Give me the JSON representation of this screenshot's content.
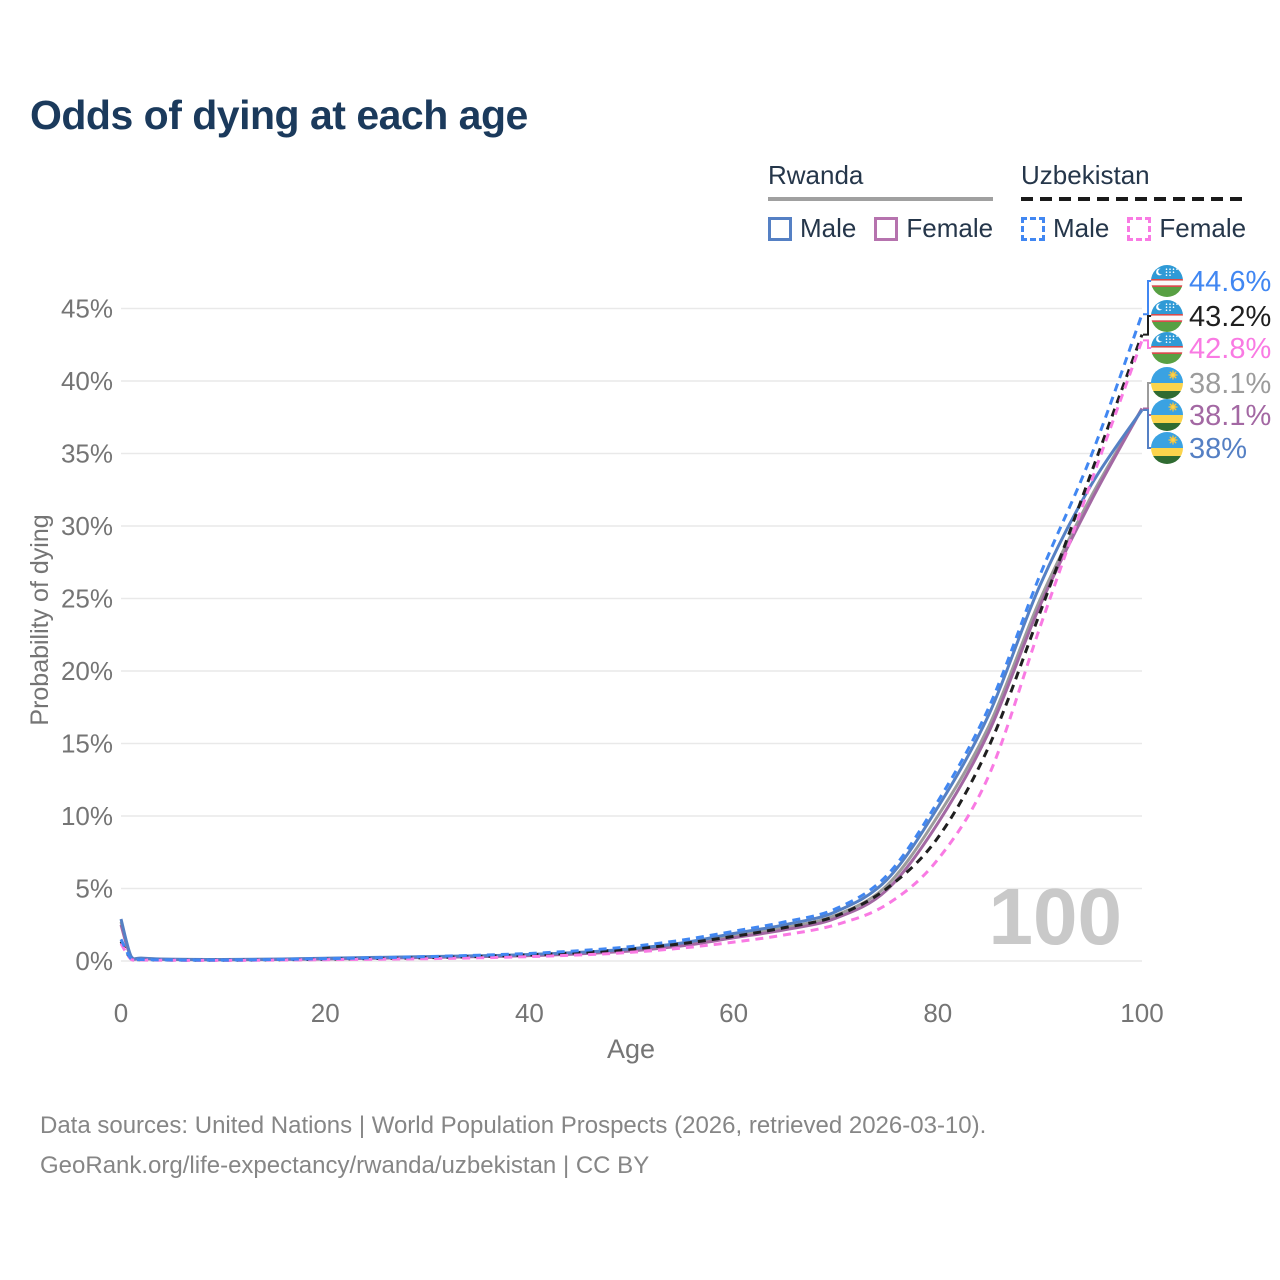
{
  "title": "Odds of dying at each age",
  "legend": {
    "groups": [
      {
        "name": "Rwanda",
        "style": "solid",
        "items": [
          {
            "label": "Male",
            "color": "#5580c4"
          },
          {
            "label": "Female",
            "color": "#b673ae"
          }
        ]
      },
      {
        "name": "Uzbekistan",
        "style": "dashed",
        "items": [
          {
            "label": "Male",
            "color": "#4187f2"
          },
          {
            "label": "Female",
            "color": "#f97ae3"
          }
        ]
      }
    ]
  },
  "chart_data": {
    "type": "line",
    "title": "Odds of dying at each age",
    "xlabel": "Age",
    "ylabel": "Probability of dying",
    "xlim": [
      0,
      100
    ],
    "ylim": [
      0,
      45
    ],
    "grid": "horizontal",
    "x_ticks": [
      "0",
      "20",
      "40",
      "60",
      "80",
      "100"
    ],
    "y_ticks": [
      "0%",
      "5%",
      "10%",
      "15%",
      "20%",
      "25%",
      "30%",
      "35%",
      "40%",
      "45%"
    ],
    "annotation": "100",
    "x": [
      0,
      1,
      2,
      5,
      10,
      15,
      20,
      25,
      30,
      35,
      40,
      45,
      50,
      55,
      60,
      65,
      70,
      75,
      80,
      85,
      90,
      95,
      100
    ],
    "series": [
      {
        "name": "Uzbekistan Male",
        "country": "Uzbekistan",
        "sex": "Male",
        "flag": "uzbekistan",
        "color": "#4187f2",
        "line_style": "dashed",
        "end_label": "44.6%",
        "values": [
          1.5,
          0.15,
          0.1,
          0.07,
          0.06,
          0.1,
          0.16,
          0.22,
          0.3,
          0.4,
          0.52,
          0.72,
          1.0,
          1.45,
          2.05,
          2.7,
          3.6,
          5.9,
          11.0,
          17.5,
          26.6,
          34.8,
          44.6
        ]
      },
      {
        "name": "Uzbekistan",
        "country": "Uzbekistan",
        "sex": "Both",
        "flag": "uzbekistan",
        "color": "#1f1f1f",
        "line_style": "dashed",
        "end_label": "43.2%",
        "values": [
          1.35,
          0.13,
          0.09,
          0.06,
          0.05,
          0.08,
          0.12,
          0.17,
          0.23,
          0.31,
          0.42,
          0.58,
          0.82,
          1.2,
          1.7,
          2.3,
          3.1,
          5.0,
          8.5,
          14.8,
          24.0,
          33.6,
          43.2
        ]
      },
      {
        "name": "Uzbekistan Female",
        "country": "Uzbekistan",
        "sex": "Female",
        "flag": "uzbekistan",
        "color": "#f97ae3",
        "line_style": "dashed",
        "end_label": "42.8%",
        "values": [
          1.2,
          0.11,
          0.07,
          0.05,
          0.04,
          0.06,
          0.09,
          0.12,
          0.16,
          0.22,
          0.3,
          0.42,
          0.6,
          0.9,
          1.3,
          1.8,
          2.5,
          3.9,
          7.0,
          12.8,
          23.0,
          33.0,
          42.8
        ]
      },
      {
        "name": "Rwanda",
        "country": "Rwanda",
        "sex": "Both",
        "flag": "rwanda",
        "color": "#9c9c9c",
        "line_style": "solid",
        "end_label": "38.1%",
        "values": [
          2.7,
          0.27,
          0.18,
          0.11,
          0.09,
          0.12,
          0.17,
          0.22,
          0.27,
          0.33,
          0.41,
          0.55,
          0.78,
          1.15,
          1.75,
          2.3,
          3.15,
          5.2,
          10.0,
          16.2,
          24.9,
          32.0,
          38.1
        ]
      },
      {
        "name": "Rwanda Female",
        "country": "Rwanda",
        "sex": "Female",
        "flag": "rwanda",
        "color": "#a368a3",
        "line_style": "solid",
        "end_label": "38.1%",
        "values": [
          2.5,
          0.24,
          0.16,
          0.1,
          0.08,
          0.1,
          0.14,
          0.19,
          0.24,
          0.3,
          0.37,
          0.5,
          0.7,
          1.05,
          1.6,
          2.15,
          2.95,
          4.9,
          9.5,
          15.8,
          24.5,
          31.7,
          38.1
        ]
      },
      {
        "name": "Rwanda Male",
        "country": "Rwanda",
        "sex": "Male",
        "flag": "rwanda",
        "color": "#5580c4",
        "line_style": "solid",
        "end_label": "38%",
        "values": [
          2.9,
          0.3,
          0.2,
          0.12,
          0.1,
          0.13,
          0.19,
          0.25,
          0.3,
          0.36,
          0.45,
          0.6,
          0.85,
          1.25,
          1.9,
          2.5,
          3.4,
          5.6,
          10.6,
          17.0,
          25.9,
          32.8,
          38.0
        ]
      }
    ]
  },
  "footer": {
    "line1": "Data sources: United Nations | World Population Prospects (2026, retrieved 2026-03-10).",
    "line2": "GeoRank.org/life-expectancy/rwanda/uzbekistan | CC BY"
  }
}
